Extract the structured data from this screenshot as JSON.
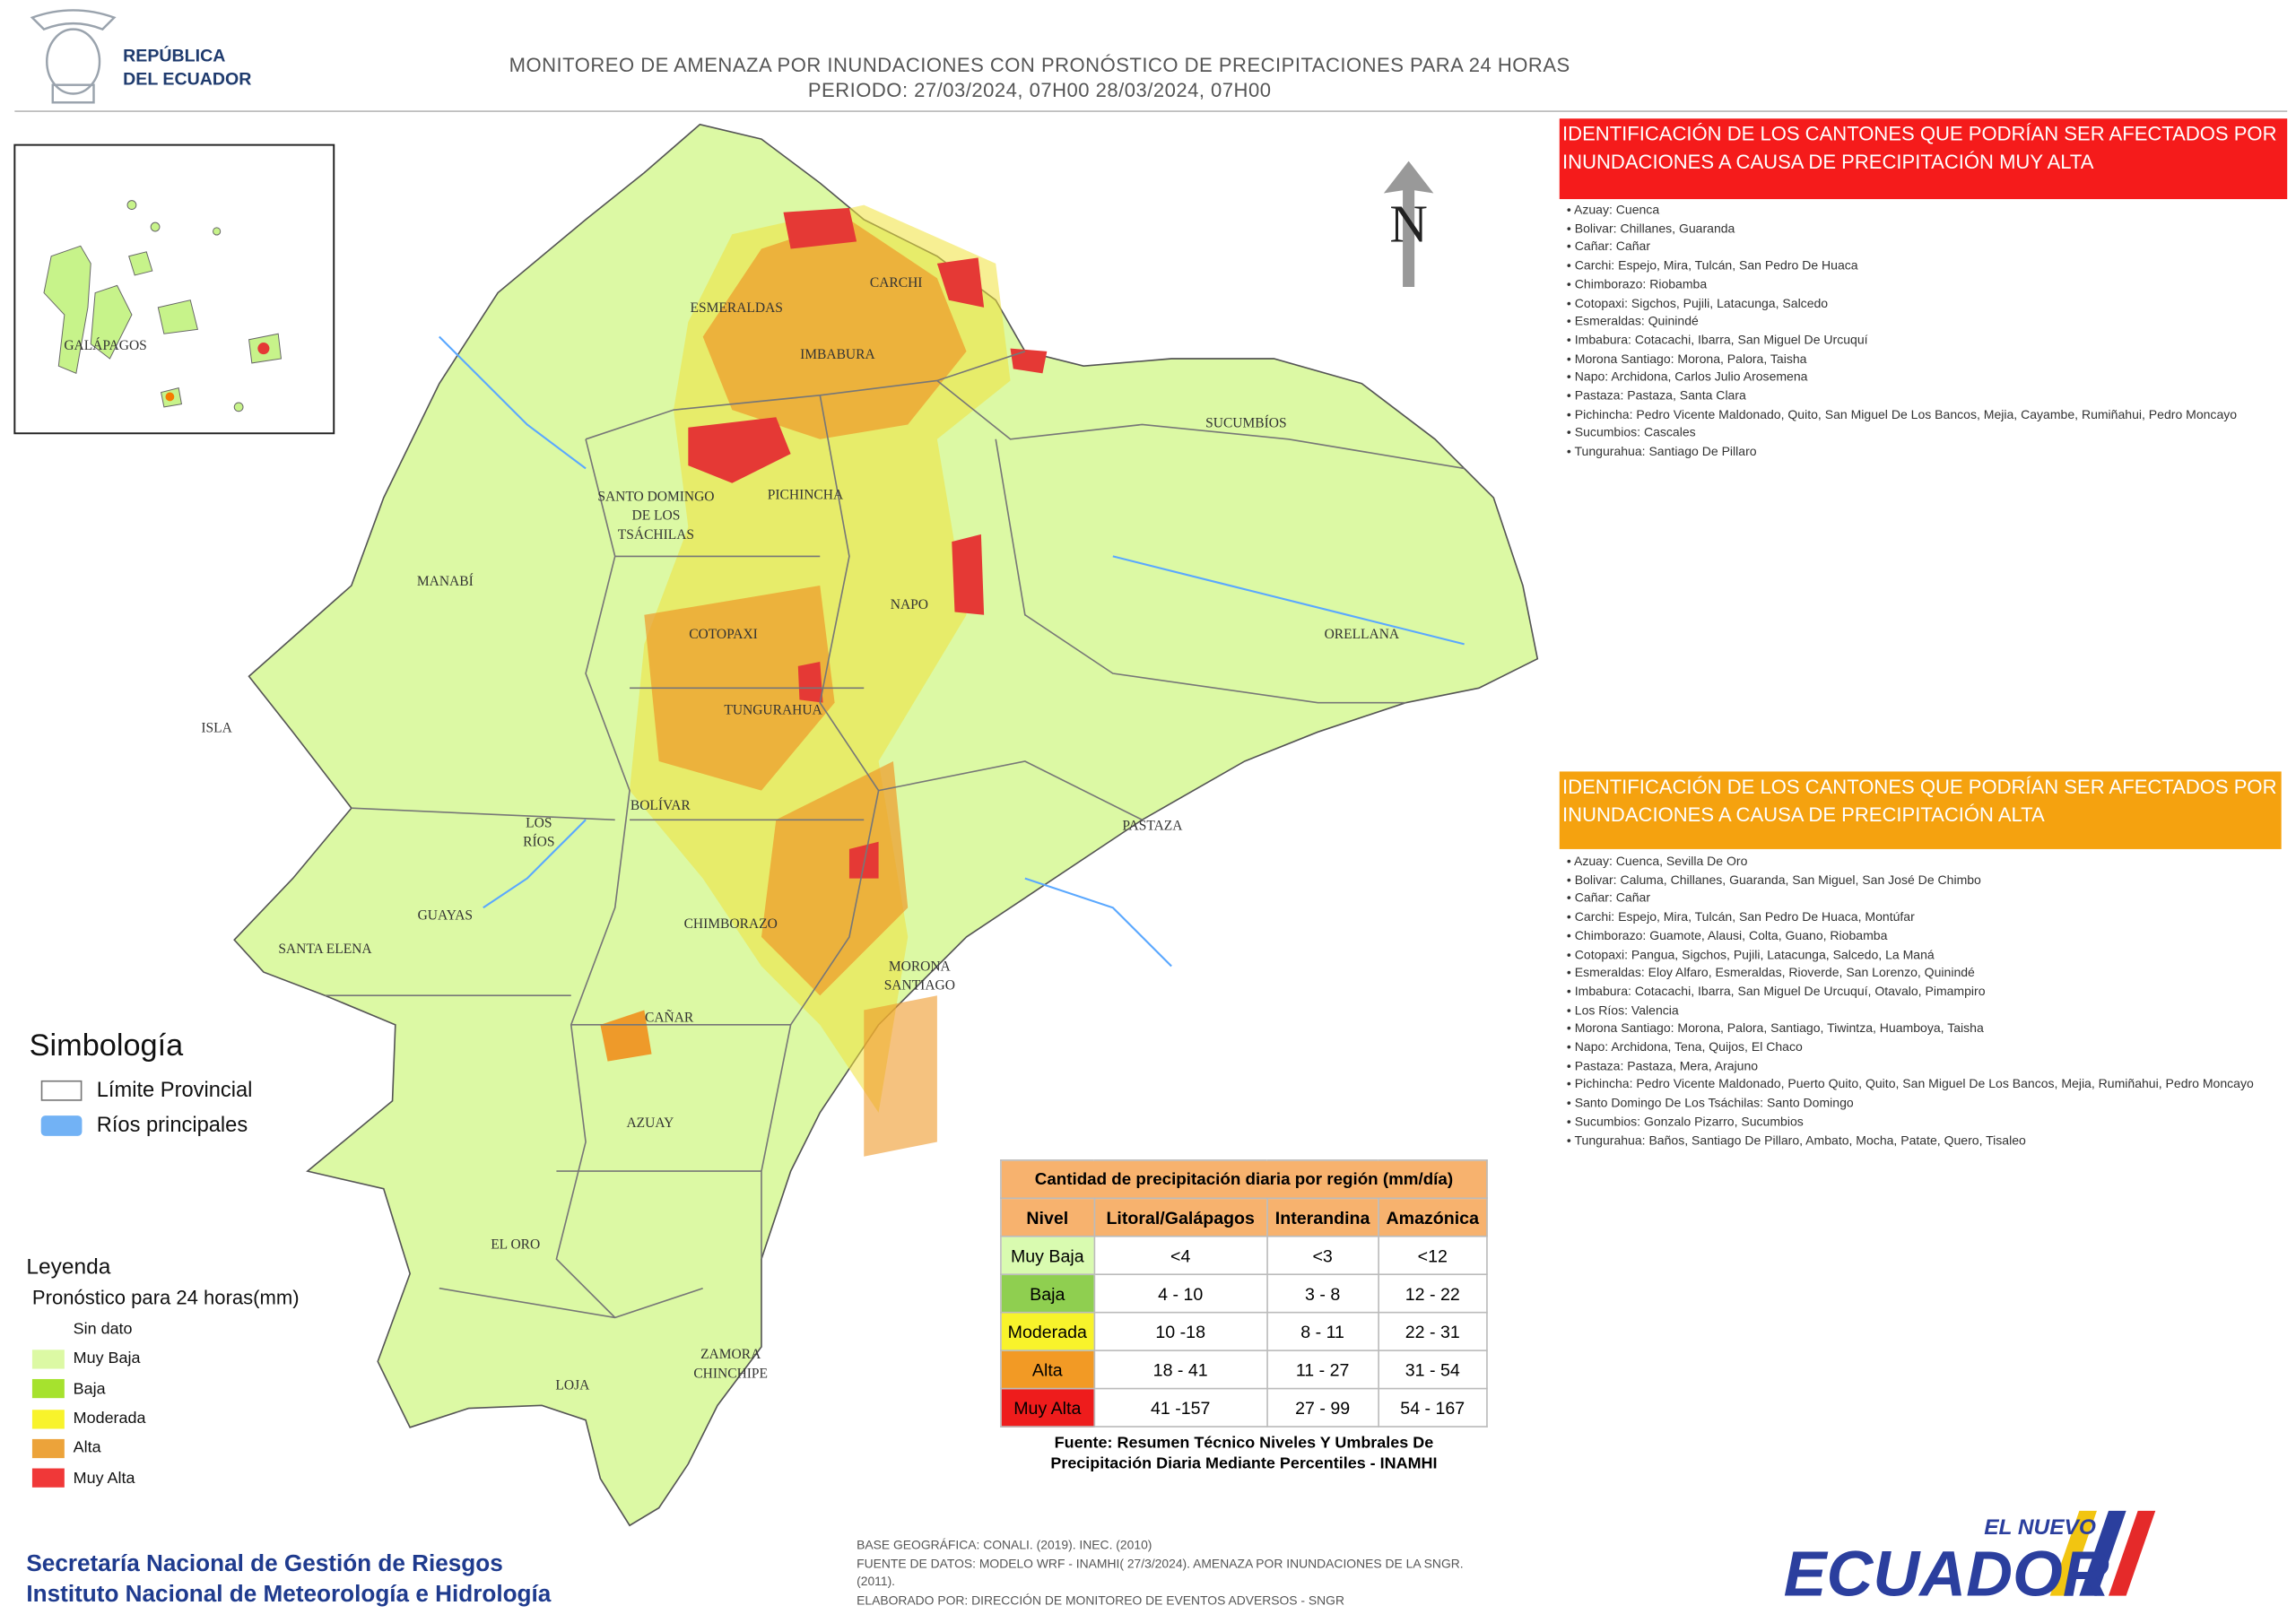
{
  "header": {
    "logo": [
      "REPÚBLICA",
      "DEL ECUADOR"
    ],
    "title": [
      "MONITOREO DE AMENAZA POR INUNDACIONES  CON PRONÓSTICO DE  PRECIPITACIONES PARA 24 HORAS",
      "PERIODO: 27/03/2024, 07H00 28/03/2024, 07H00"
    ]
  },
  "map": {
    "north": "N",
    "inset_label": "GALÁPAGOS",
    "provinces": [
      [
        "ESMERALDAS"
      ],
      [
        "CARCHI"
      ],
      [
        "IMBABURA"
      ],
      [
        "SUCUMBÍOS"
      ],
      [
        "SANTO DOMINGO",
        "DE LOS",
        "TSÁCHILAS"
      ],
      [
        "PICHINCHA"
      ],
      [
        "MANABÍ"
      ],
      [
        "NAPO"
      ],
      [
        "ORELLANA"
      ],
      [
        "COTOPAXI"
      ],
      [
        "ISLA"
      ],
      [
        "TUNGURAHUA"
      ],
      [
        "BOLÍVAR"
      ],
      [
        "LOS",
        "RÍOS"
      ],
      [
        "PASTAZA"
      ],
      [
        "GUAYAS"
      ],
      [
        "CHIMBORAZO"
      ],
      [
        "SANTA ELENA"
      ],
      [
        "MORONA",
        "SANTIAGO"
      ],
      [
        "CAÑAR"
      ],
      [
        "AZUAY"
      ],
      [
        "EL ORO"
      ],
      [
        "ZAMORA",
        "CHINCHIPE"
      ],
      [
        "LOJA"
      ]
    ]
  },
  "panel_very_high": {
    "title": "IDENTIFICACIÓN DE LOS CANTONES QUE PODRÍAN SER AFECTADOS POR INUNDACIONES  A CAUSA DE PRECIPITACIÓN MUY ALTA",
    "items": [
      "Azuay: Cuenca",
      "Bolivar: Chillanes, Guaranda",
      "Cañar: Cañar",
      "Carchi: Espejo, Mira, Tulcán, San Pedro De Huaca",
      "Chimborazo: Riobamba",
      "Cotopaxi: Sigchos, Pujili, Latacunga, Salcedo",
      "Esmeraldas: Quinindé",
      "Imbabura: Cotacachi, Ibarra, San Miguel De Urcuquí",
      "Morona Santiago: Morona, Palora, Taisha",
      "Napo: Archidona, Carlos Julio Arosemena",
      "Pastaza: Pastaza, Santa Clara",
      "Pichincha: Pedro Vicente Maldonado, Quito, San Miguel De Los Bancos, Mejia, Cayambe, Rumiñahui, Pedro Moncayo",
      "Sucumbios: Cascales",
      "Tungurahua: Santiago De Pillaro"
    ]
  },
  "panel_high": {
    "title": "IDENTIFICACIÓN DE LOS CANTONES QUE  PODRÍAN SER AFECTADOS POR INUNDACIONES  A CAUSA DE PRECIPITACIÓN  ALTA",
    "items": [
      "Azuay: Cuenca, Sevilla De Oro",
      "Bolivar: Caluma, Chillanes, Guaranda, San Miguel, San José De Chimbo",
      "Cañar: Cañar",
      "Carchi: Espejo, Mira, Tulcán, San Pedro De Huaca, Montúfar",
      "Chimborazo: Guamote, Alausi, Colta, Guano, Riobamba",
      "Cotopaxi: Pangua, Sigchos, Pujili, Latacunga, Salcedo, La Maná",
      "Esmeraldas: Eloy Alfaro, Esmeraldas, Rioverde, San Lorenzo, Quinindé",
      "Imbabura: Cotacachi, Ibarra, San Miguel De Urcuquí, Otavalo, Pimampiro",
      "Los Ríos: Valencia",
      "Morona Santiago: Morona, Palora, Santiago, Tiwintza, Huamboya, Taisha",
      "Napo: Archidona, Tena, Quijos, El Chaco",
      "Pastaza: Pastaza, Mera, Arajuno",
      "Pichincha: Pedro Vicente Maldonado, Puerto Quito, Quito, San Miguel De Los Bancos, Mejia, Rumiñahui, Pedro Moncayo",
      "Santo Domingo De Los Tsáchilas: Santo Domingo",
      "Sucumbios: Gonzalo Pizarro, Sucumbios",
      "Tungurahua: Baños, Santiago De Pillaro, Ambato, Mocha, Patate, Quero, Tisaleo"
    ]
  },
  "symbology": {
    "title": "Simbología",
    "items": [
      "Límite Provincial",
      "Ríos principales"
    ]
  },
  "legend": {
    "title": "Leyenda",
    "subtitle": "Pronóstico para 24 horas(mm)",
    "items": [
      "Sin dato",
      "Muy Baja",
      "Baja",
      "Moderada",
      "Alta",
      "Muy Alta"
    ]
  },
  "table": {
    "title": "Cantidad de precipitación diaria por región (mm/día)",
    "header": [
      "Nivel",
      "Litoral/Galápagos",
      "Interandina",
      "Amazónica"
    ],
    "rows": [
      [
        "Muy Baja",
        "<4",
        "<3",
        "<12"
      ],
      [
        "Baja",
        "4 - 10",
        "3 - 8",
        "12 - 22"
      ],
      [
        "Moderada",
        "10 -18",
        "8 - 11",
        "22 - 31"
      ],
      [
        "Alta",
        "18 - 41",
        "11 - 27",
        "31 - 54"
      ],
      [
        "Muy Alta",
        "41 -157",
        "27 - 99",
        "54 - 167"
      ]
    ],
    "source": "Fuente: Resumen Técnico Niveles Y Umbrales De Precipitación Diaria Mediante Percentiles - INAMHI"
  },
  "footer": {
    "institutions": [
      "Secretaría Nacional de Gestión de Riesgos",
      "Instituto Nacional de Meteorología e Hidrología"
    ],
    "credits": [
      "BASE GEOGRÁFICA: CONALI. (2019). INEC. (2010)",
      "FUENTE DE DATOS: MODELO WRF - INAMHI( 27/3/2024).  AMENAZA POR INUNDACIONES DE LA SNGR. (2011).",
      "ELABORADO POR: DIRECCIÓN DE MONITOREO DE EVENTOS ADVERSOS - SNGR"
    ],
    "brand": [
      "EL NUEVO",
      "ECUADOR"
    ]
  }
}
